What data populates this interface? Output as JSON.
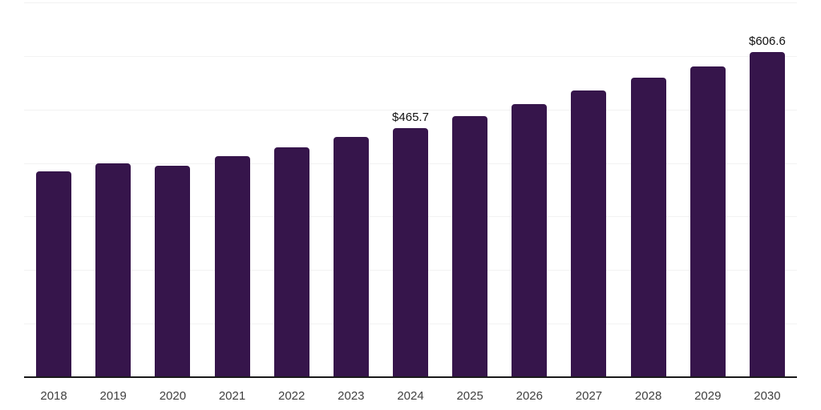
{
  "chart_data": {
    "type": "bar",
    "title": "",
    "xlabel": "",
    "ylabel": "",
    "categories": [
      "2018",
      "2019",
      "2020",
      "2021",
      "2022",
      "2023",
      "2024",
      "2025",
      "2026",
      "2027",
      "2028",
      "2029",
      "2030"
    ],
    "values": [
      384.3,
      399.5,
      394.8,
      412.6,
      429.0,
      448.4,
      465.7,
      487.1,
      509.5,
      534.8,
      560.1,
      581.0,
      606.6
    ],
    "data_labels": [
      {
        "category": "2024",
        "text": "$465.7"
      },
      {
        "category": "2030",
        "text": "$606.6"
      }
    ],
    "ylim": [
      0,
      700
    ],
    "gridline_step": 100,
    "grid": true,
    "y_tick_labels_visible": false,
    "legend_position": "none",
    "colors": {
      "bar": "#36154B",
      "gridline": "#f2f2f2",
      "axis": "#1a1a1a",
      "tick_label": "#404040",
      "data_label": "#111111",
      "background": "#ffffff"
    }
  }
}
